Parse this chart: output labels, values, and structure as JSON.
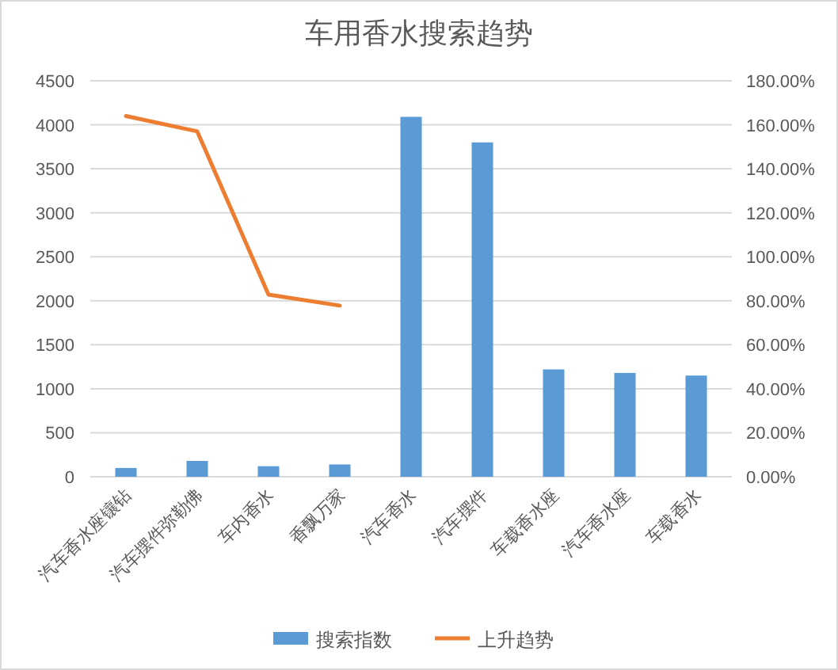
{
  "chart_data": {
    "type": "bar",
    "title": "车用香水搜索趋势",
    "categories": [
      "汽车香水座镶钻",
      "汽车摆件弥勒佛",
      "车内香水",
      "香飘万家",
      "汽车香水",
      "汽车摆件",
      "车载香水座",
      "汽车香水座",
      "车载香水"
    ],
    "series": [
      {
        "name": "搜索指数",
        "color": "#5b9bd5",
        "values": [
          100,
          180,
          120,
          140,
          4090,
          3800,
          1220,
          1180,
          1150
        ]
      },
      {
        "name": "上升趋势",
        "type": "line",
        "axis": "y2",
        "color": "#ed7d31",
        "values": [
          164,
          157,
          82.8,
          77.8,
          null,
          null,
          null,
          null,
          null
        ]
      }
    ],
    "ylim": [
      0,
      4500
    ],
    "yticks": [
      0,
      500,
      1000,
      1500,
      2000,
      2500,
      3000,
      3500,
      4000,
      4500
    ],
    "y2lim": [
      0,
      180
    ],
    "y2ticks": [
      {
        "value": 0,
        "label": "0.00%"
      },
      {
        "value": 20,
        "label": "20.00%"
      },
      {
        "value": 40,
        "label": "40.00%"
      },
      {
        "value": 60,
        "label": "60.00%"
      },
      {
        "value": 80,
        "label": "80.00%"
      },
      {
        "value": 100,
        "label": "100.00%"
      },
      {
        "value": 120,
        "label": "120.00%"
      },
      {
        "value": 140,
        "label": "140.00%"
      },
      {
        "value": 160,
        "label": "160.00%"
      },
      {
        "value": 180,
        "label": "180.00%"
      }
    ],
    "grid": "y",
    "legend": "bottom",
    "marker": "none"
  }
}
